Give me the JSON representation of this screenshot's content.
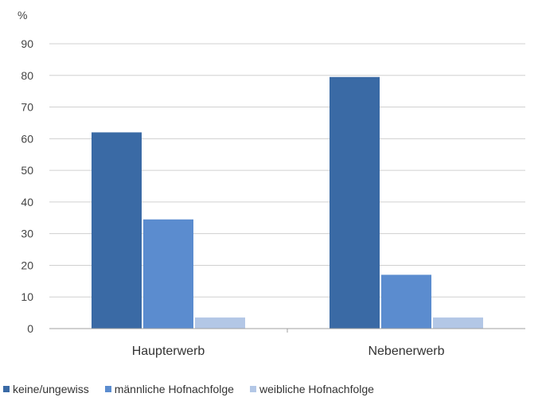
{
  "chart_data": {
    "type": "bar",
    "unit_label": "%",
    "categories": [
      "Haupterwerb",
      "Nebenerwerb"
    ],
    "series": [
      {
        "name": "keine/ungewiss",
        "color": "#3a6aa5",
        "values": [
          62,
          79.5
        ]
      },
      {
        "name": "männliche Hofnachfolge",
        "color": "#5b8ccf",
        "values": [
          34.5,
          17
        ]
      },
      {
        "name": "weibliche Hofnachfolge",
        "color": "#b3c7e6",
        "values": [
          3.5,
          3.5
        ]
      }
    ],
    "ylim": [
      0,
      90
    ],
    "yticks": [
      0,
      10,
      20,
      30,
      40,
      50,
      60,
      70,
      80,
      90
    ],
    "grid": true,
    "legend_position": "bottom",
    "xlabel": "",
    "ylabel": ""
  }
}
